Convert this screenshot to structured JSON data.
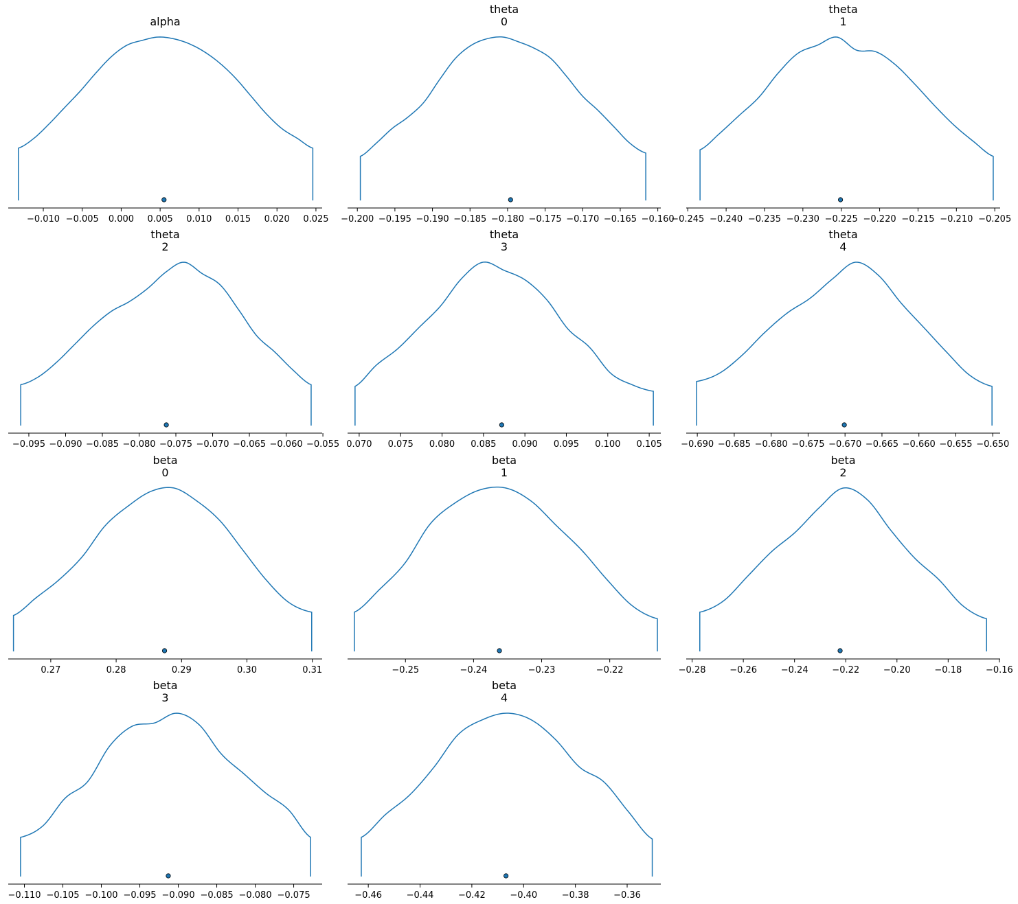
{
  "chart_data": [
    {
      "type": "area",
      "title": [
        "alpha"
      ],
      "xlim": [
        -0.0145,
        0.0258
      ],
      "ticks": [
        -0.01,
        -0.005,
        0.0,
        0.005,
        0.01,
        0.015,
        0.02,
        0.025
      ],
      "tick_labels": [
        "−0.010",
        "−0.005",
        "0.000",
        "0.005",
        "0.010",
        "0.015",
        "0.020",
        "0.025"
      ],
      "range": [
        -0.0132,
        0.0246
      ],
      "point_estimate": 0.0055,
      "density": [
        0.32,
        0.38,
        0.47,
        0.57,
        0.67,
        0.78,
        0.88,
        0.95,
        0.98,
        1.0,
        0.99,
        0.96,
        0.91,
        0.84,
        0.75,
        0.64,
        0.53,
        0.44,
        0.38,
        0.32
      ]
    },
    {
      "type": "area",
      "title": [
        "theta",
        "0"
      ],
      "xlim": [
        -0.2013,
        -0.1596
      ],
      "ticks": [
        -0.2,
        -0.195,
        -0.19,
        -0.185,
        -0.18,
        -0.175,
        -0.17,
        -0.165,
        -0.16
      ],
      "tick_labels": [
        "−0.200",
        "−0.195",
        "−0.190",
        "−0.185",
        "−0.180",
        "−0.175",
        "−0.170",
        "−0.165",
        "−0.160"
      ],
      "range": [
        -0.1996,
        -0.1616
      ],
      "point_estimate": -0.1796,
      "density": [
        0.27,
        0.35,
        0.44,
        0.51,
        0.6,
        0.74,
        0.87,
        0.95,
        0.99,
        1.0,
        0.97,
        0.93,
        0.87,
        0.76,
        0.64,
        0.55,
        0.45,
        0.35,
        0.29
      ]
    },
    {
      "type": "area",
      "title": [
        "theta",
        "1"
      ],
      "xlim": [
        -0.2452,
        -0.2043
      ],
      "ticks": [
        -0.245,
        -0.24,
        -0.235,
        -0.23,
        -0.225,
        -0.22,
        -0.215,
        -0.21,
        -0.205
      ],
      "tick_labels": [
        "−0.245",
        "−0.240",
        "−0.235",
        "−0.230",
        "−0.225",
        "−0.220",
        "−0.215",
        "−0.210",
        "−0.205"
      ],
      "range": [
        -0.2434,
        -0.2052
      ],
      "point_estimate": -0.2251,
      "density": [
        0.31,
        0.41,
        0.52,
        0.63,
        0.78,
        0.9,
        0.95,
        1.0,
        0.92,
        0.91,
        0.83,
        0.71,
        0.58,
        0.46,
        0.36,
        0.27
      ]
    },
    {
      "type": "area",
      "title": [
        "theta",
        "2"
      ],
      "xlim": [
        -0.0978,
        -0.0551
      ],
      "ticks": [
        -0.095,
        -0.09,
        -0.085,
        -0.08,
        -0.075,
        -0.07,
        -0.065,
        -0.06,
        -0.055
      ],
      "tick_labels": [
        "−0.095",
        "−0.090",
        "−0.085",
        "−0.080",
        "−0.075",
        "−0.070",
        "−0.065",
        "−0.060",
        "−0.055"
      ],
      "range": [
        -0.0961,
        -0.0566
      ],
      "point_estimate": -0.0763,
      "density": [
        0.25,
        0.3,
        0.39,
        0.5,
        0.61,
        0.7,
        0.76,
        0.84,
        0.94,
        1.0,
        0.93,
        0.86,
        0.71,
        0.55,
        0.45,
        0.34,
        0.25
      ]
    },
    {
      "type": "area",
      "title": [
        "theta",
        "3"
      ],
      "xlim": [
        0.0686,
        0.1064
      ],
      "ticks": [
        0.07,
        0.075,
        0.08,
        0.085,
        0.09,
        0.095,
        0.1,
        0.105
      ],
      "tick_labels": [
        "0.070",
        "0.075",
        "0.080",
        "0.085",
        "0.090",
        "0.095",
        "0.100",
        "0.105"
      ],
      "range": [
        0.0695,
        0.1055
      ],
      "point_estimate": 0.0872,
      "density": [
        0.24,
        0.37,
        0.47,
        0.6,
        0.73,
        0.9,
        1.0,
        0.95,
        0.89,
        0.77,
        0.59,
        0.48,
        0.32,
        0.25,
        0.21
      ]
    },
    {
      "type": "area",
      "title": [
        "theta",
        "4"
      ],
      "xlim": [
        -0.6915,
        -0.649
      ],
      "ticks": [
        -0.69,
        -0.685,
        -0.68,
        -0.675,
        -0.67,
        -0.665,
        -0.66,
        -0.655,
        -0.65
      ],
      "tick_labels": [
        "−0.690",
        "−0.685",
        "−0.680",
        "−0.675",
        "−0.670",
        "−0.665",
        "−0.660",
        "−0.655",
        "−0.650"
      ],
      "range": [
        -0.6901,
        -0.6501
      ],
      "point_estimate": -0.6701,
      "density": [
        0.27,
        0.32,
        0.43,
        0.57,
        0.69,
        0.78,
        0.9,
        1.0,
        0.92,
        0.75,
        0.6,
        0.45,
        0.31,
        0.24
      ]
    },
    {
      "type": "area",
      "title": [
        "beta",
        "0"
      ],
      "xlim": [
        0.2635,
        0.3115
      ],
      "ticks": [
        0.27,
        0.28,
        0.29,
        0.3,
        0.31
      ],
      "tick_labels": [
        "0.27",
        "0.28",
        "0.29",
        "0.30",
        "0.31"
      ],
      "range": [
        0.2643,
        0.3099
      ],
      "point_estimate": 0.2874,
      "density": [
        0.22,
        0.33,
        0.44,
        0.58,
        0.77,
        0.89,
        0.98,
        1.0,
        0.92,
        0.8,
        0.62,
        0.44,
        0.3,
        0.24
      ]
    },
    {
      "type": "area",
      "title": [
        "beta",
        "1"
      ],
      "xlim": [
        -0.2585,
        -0.2125
      ],
      "ticks": [
        -0.25,
        -0.24,
        -0.23,
        -0.22
      ],
      "tick_labels": [
        "−0.25",
        "−0.24",
        "−0.23",
        "−0.22"
      ],
      "range": [
        -0.2575,
        -0.213
      ],
      "point_estimate": -0.2362,
      "density": [
        0.24,
        0.38,
        0.54,
        0.78,
        0.91,
        0.99,
        1.0,
        0.92,
        0.77,
        0.62,
        0.44,
        0.28,
        0.2
      ]
    },
    {
      "type": "area",
      "title": [
        "beta",
        "2"
      ],
      "xlim": [
        -0.2823,
        -0.1597
      ],
      "ticks": [
        -0.28,
        -0.26,
        -0.24,
        -0.22,
        -0.2,
        -0.18,
        -0.16
      ],
      "tick_labels": [
        "−0.28",
        "−0.26",
        "−0.24",
        "−0.22",
        "−0.20",
        "−0.18",
        "−0.16"
      ],
      "range": [
        -0.277,
        -0.165
      ],
      "point_estimate": -0.2222,
      "density": [
        0.24,
        0.31,
        0.46,
        0.61,
        0.73,
        0.88,
        1.0,
        0.93,
        0.74,
        0.57,
        0.44,
        0.28,
        0.2
      ]
    },
    {
      "type": "area",
      "title": [
        "beta",
        "3"
      ],
      "xlim": [
        -0.1121,
        -0.0713
      ],
      "ticks": [
        -0.11,
        -0.105,
        -0.1,
        -0.095,
        -0.09,
        -0.085,
        -0.08,
        -0.075
      ],
      "tick_labels": [
        "−0.110",
        "−0.105",
        "−0.100",
        "−0.095",
        "−0.090",
        "−0.085",
        "−0.080",
        "−0.075"
      ],
      "range": [
        -0.1105,
        -0.0728
      ],
      "point_estimate": -0.0913,
      "density": [
        0.24,
        0.31,
        0.48,
        0.58,
        0.8,
        0.92,
        0.94,
        1.0,
        0.93,
        0.75,
        0.63,
        0.51,
        0.41,
        0.24
      ]
    },
    {
      "type": "area",
      "title": [
        "beta",
        "4"
      ],
      "xlim": [
        -0.468,
        -0.347
      ],
      "ticks": [
        -0.46,
        -0.44,
        -0.42,
        -0.4,
        -0.38,
        -0.36
      ],
      "tick_labels": [
        "−0.46",
        "−0.44",
        "−0.42",
        "−0.40",
        "−0.38",
        "−0.36"
      ],
      "range": [
        -0.4627,
        -0.3503
      ],
      "point_estimate": -0.4068,
      "density": [
        0.24,
        0.38,
        0.5,
        0.67,
        0.87,
        0.96,
        1.0,
        0.96,
        0.84,
        0.67,
        0.58,
        0.4,
        0.23
      ]
    }
  ],
  "colors": {
    "line": "#1f77b4",
    "marker_fill": "#1f77b4",
    "marker_edge": "#000000",
    "axis": "#000000"
  }
}
